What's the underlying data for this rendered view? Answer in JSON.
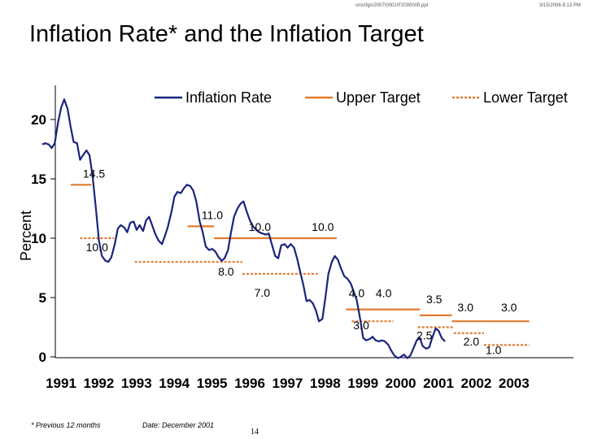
{
  "header": {
    "path": "cms\\fgs\\2007\\0001\\F2000005.ppt",
    "date": "3/15/2006 8:13 PM"
  },
  "title": "Inflation Rate* and the Inflation Target",
  "footer": {
    "note": "* Previous 12 months",
    "date": "Date: December 2001",
    "page": "14"
  },
  "chart_data": {
    "type": "line",
    "ylabel": "Percent",
    "xlabel": "",
    "ylim": [
      0,
      22
    ],
    "yticks": [
      "0",
      "5",
      "10",
      "15",
      "20"
    ],
    "xticks": [
      "1991",
      "1992",
      "1993",
      "1994",
      "1995",
      "1996",
      "1997",
      "1998",
      "1999",
      "2000",
      "2001",
      "2002",
      "2003"
    ],
    "legend": {
      "position": "top",
      "entries": [
        "Inflation Rate",
        "Upper Target",
        "Lower Target"
      ]
    },
    "colors": {
      "inflation": "#1a237e",
      "upper": "#e07a2f",
      "lower": "#e07a2f"
    },
    "series": [
      {
        "name": "Inflation Rate",
        "points": [
          [
            1991.0,
            17.9
          ],
          [
            1991.08,
            18.0
          ],
          [
            1991.17,
            17.9
          ],
          [
            1991.25,
            17.6
          ],
          [
            1991.33,
            18.0
          ],
          [
            1991.42,
            19.8
          ],
          [
            1991.5,
            21.0
          ],
          [
            1991.58,
            21.7
          ],
          [
            1991.67,
            20.9
          ],
          [
            1991.75,
            19.4
          ],
          [
            1991.83,
            18.1
          ],
          [
            1991.92,
            18.0
          ],
          [
            1992.0,
            16.6
          ],
          [
            1992.08,
            17.0
          ],
          [
            1992.17,
            17.4
          ],
          [
            1992.25,
            17.0
          ],
          [
            1992.33,
            15.3
          ],
          [
            1992.42,
            12.5
          ],
          [
            1992.5,
            9.8
          ],
          [
            1992.58,
            8.5
          ],
          [
            1992.67,
            8.1
          ],
          [
            1992.75,
            8.0
          ],
          [
            1992.83,
            8.4
          ],
          [
            1992.92,
            9.5
          ],
          [
            1993.0,
            10.8
          ],
          [
            1993.08,
            11.1
          ],
          [
            1993.17,
            10.9
          ],
          [
            1993.25,
            10.5
          ],
          [
            1993.33,
            11.3
          ],
          [
            1993.42,
            11.4
          ],
          [
            1993.5,
            10.7
          ],
          [
            1993.58,
            11.1
          ],
          [
            1993.67,
            10.6
          ],
          [
            1993.75,
            11.5
          ],
          [
            1993.83,
            11.8
          ],
          [
            1993.92,
            11.0
          ],
          [
            1994.0,
            10.3
          ],
          [
            1994.08,
            9.8
          ],
          [
            1994.17,
            9.5
          ],
          [
            1994.25,
            10.2
          ],
          [
            1994.33,
            11.0
          ],
          [
            1994.42,
            12.2
          ],
          [
            1994.5,
            13.5
          ],
          [
            1994.58,
            13.9
          ],
          [
            1994.67,
            13.8
          ],
          [
            1994.75,
            14.2
          ],
          [
            1994.83,
            14.5
          ],
          [
            1994.92,
            14.4
          ],
          [
            1995.0,
            14.0
          ],
          [
            1995.08,
            13.1
          ],
          [
            1995.17,
            11.4
          ],
          [
            1995.25,
            10.5
          ],
          [
            1995.33,
            9.3
          ],
          [
            1995.42,
            9.0
          ],
          [
            1995.5,
            9.1
          ],
          [
            1995.58,
            8.9
          ],
          [
            1995.67,
            8.4
          ],
          [
            1995.75,
            8.1
          ],
          [
            1995.83,
            8.3
          ],
          [
            1995.92,
            9.0
          ],
          [
            1996.0,
            10.5
          ],
          [
            1996.08,
            11.8
          ],
          [
            1996.17,
            12.5
          ],
          [
            1996.25,
            12.9
          ],
          [
            1996.33,
            13.1
          ],
          [
            1996.42,
            12.2
          ],
          [
            1996.5,
            11.5
          ],
          [
            1996.58,
            11.0
          ],
          [
            1996.67,
            10.7
          ],
          [
            1996.75,
            10.5
          ],
          [
            1996.83,
            10.4
          ],
          [
            1996.92,
            10.3
          ],
          [
            1997.0,
            10.4
          ],
          [
            1997.08,
            9.5
          ],
          [
            1997.17,
            8.5
          ],
          [
            1997.25,
            8.3
          ],
          [
            1997.33,
            9.4
          ],
          [
            1997.42,
            9.5
          ],
          [
            1997.5,
            9.2
          ],
          [
            1997.58,
            9.5
          ],
          [
            1997.67,
            9.2
          ],
          [
            1997.75,
            8.3
          ],
          [
            1997.83,
            7.2
          ],
          [
            1997.92,
            6.0
          ],
          [
            1998.0,
            4.7
          ],
          [
            1998.08,
            4.8
          ],
          [
            1998.17,
            4.5
          ],
          [
            1998.25,
            3.9
          ],
          [
            1998.33,
            3.0
          ],
          [
            1998.42,
            3.2
          ],
          [
            1998.5,
            5.0
          ],
          [
            1998.58,
            7.0
          ],
          [
            1998.67,
            8.0
          ],
          [
            1998.75,
            8.5
          ],
          [
            1998.83,
            8.2
          ],
          [
            1998.92,
            7.4
          ],
          [
            1999.0,
            6.8
          ],
          [
            1999.08,
            6.6
          ],
          [
            1999.17,
            6.2
          ],
          [
            1999.25,
            5.5
          ],
          [
            1999.33,
            4.8
          ],
          [
            1999.42,
            3.2
          ],
          [
            1999.5,
            1.6
          ],
          [
            1999.58,
            1.4
          ],
          [
            1999.67,
            1.5
          ],
          [
            1999.75,
            1.7
          ],
          [
            1999.83,
            1.4
          ],
          [
            1999.92,
            1.3
          ],
          [
            2000.0,
            1.4
          ],
          [
            2000.08,
            1.3
          ],
          [
            2000.17,
            1.0
          ],
          [
            2000.25,
            0.5
          ],
          [
            2000.33,
            0.1
          ],
          [
            2000.42,
            -0.1
          ],
          [
            2000.5,
            0.0
          ],
          [
            2000.58,
            0.2
          ],
          [
            2000.67,
            -0.1
          ],
          [
            2000.75,
            0.1
          ],
          [
            2000.83,
            0.7
          ],
          [
            2000.92,
            1.4
          ],
          [
            2001.0,
            1.6
          ],
          [
            2001.08,
            0.9
          ],
          [
            2001.17,
            0.7
          ],
          [
            2001.25,
            0.8
          ],
          [
            2001.33,
            1.6
          ],
          [
            2001.42,
            2.4
          ],
          [
            2001.5,
            2.2
          ],
          [
            2001.58,
            1.6
          ],
          [
            2001.67,
            1.3
          ]
        ]
      },
      {
        "name": "Upper Target",
        "segments": [
          {
            "x": [
              1991.75,
              1992.3
            ],
            "y": 14.5,
            "label": "14.5"
          },
          {
            "x": [
              1994.85,
              1995.55
            ],
            "y": 11.0,
            "label": "11.0"
          },
          {
            "x": [
              1995.55,
              1997.2
            ],
            "y": 10.0,
            "label": "10.0"
          },
          {
            "x": [
              1997.2,
              1998.8
            ],
            "y": 10.0,
            "label": "10.0"
          },
          {
            "x": [
              1999.05,
              1999.95
            ],
            "y": 4.0,
            "label": "4.0"
          },
          {
            "x": [
              1999.95,
              2001.0
            ],
            "y": 4.0,
            "label": "4.0"
          },
          {
            "x": [
              2001.0,
              2001.85
            ],
            "y": 3.5,
            "label": "3.5"
          },
          {
            "x": [
              2001.85,
              2002.7
            ],
            "y": 3.0,
            "label": "3.0"
          },
          {
            "x": [
              2002.7,
              2003.9
            ],
            "y": 3.0,
            "label": "3.0"
          }
        ]
      },
      {
        "name": "Lower Target",
        "segments": [
          {
            "x": [
              1992.0,
              1992.9
            ],
            "y": 10.0,
            "label": "10.0"
          },
          {
            "x": [
              1993.45,
              1996.3
            ],
            "y": 8.0,
            "label": "8.0"
          },
          {
            "x": [
              1996.3,
              1998.3
            ],
            "y": 7.0,
            "label": "7.0"
          },
          {
            "x": [
              1999.2,
              2000.3
            ],
            "y": 3.0,
            "label": "3.0"
          },
          {
            "x": [
              2000.95,
              2001.9
            ],
            "y": 2.5,
            "label": "2.5"
          },
          {
            "x": [
              2001.9,
              2002.7
            ],
            "y": 2.0,
            "label": "2.0"
          },
          {
            "x": [
              2002.7,
              2003.9
            ],
            "y": 1.0,
            "label": "1.0"
          }
        ]
      }
    ]
  }
}
